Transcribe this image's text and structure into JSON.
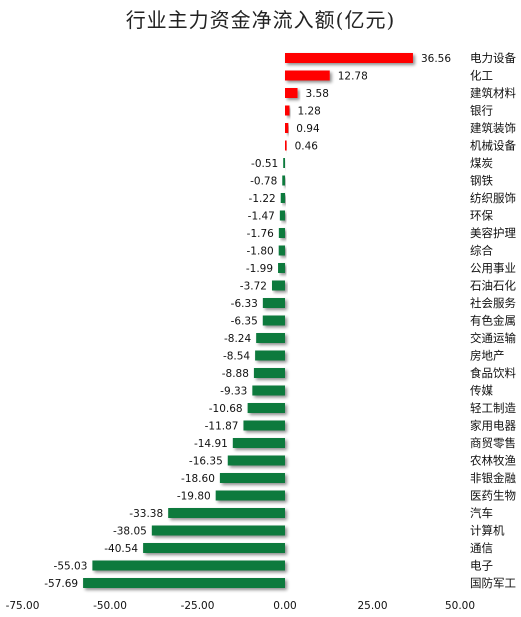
{
  "chart_data": {
    "type": "bar",
    "orientation": "horizontal",
    "title": "行业主力资金净流入额(亿元)",
    "xlabel": "",
    "ylabel": "",
    "xlim": [
      -75,
      50
    ],
    "x_ticks": [
      "-75.00",
      "-50.00",
      "-25.00",
      "0.00",
      "25.00",
      "50.00"
    ],
    "x_tick_values": [
      -75,
      -50,
      -25,
      0,
      25,
      50
    ],
    "grid": false,
    "legend": "none",
    "colors": {
      "positive": "#ff0000",
      "negative": "#0b7a3e"
    },
    "categories": [
      "电力设备",
      "化工",
      "建筑材料",
      "银行",
      "建筑装饰",
      "机械设备",
      "煤炭",
      "钢铁",
      "纺织服饰",
      "环保",
      "美容护理",
      "综合",
      "公用事业",
      "石油石化",
      "社会服务",
      "有色金属",
      "交通运输",
      "房地产",
      "食品饮料",
      "传媒",
      "轻工制造",
      "家用电器",
      "商贸零售",
      "农林牧渔",
      "非银金融",
      "医药生物",
      "汽车",
      "计算机",
      "通信",
      "电子",
      "国防军工"
    ],
    "values": [
      36.56,
      12.78,
      3.58,
      1.28,
      0.94,
      0.46,
      -0.51,
      -0.78,
      -1.22,
      -1.47,
      -1.76,
      -1.8,
      -1.99,
      -3.72,
      -6.33,
      -6.35,
      -8.24,
      -8.54,
      -8.88,
      -9.33,
      -10.68,
      -11.87,
      -14.91,
      -16.35,
      -18.6,
      -19.8,
      -33.38,
      -38.05,
      -40.54,
      -55.03,
      -57.69
    ]
  }
}
